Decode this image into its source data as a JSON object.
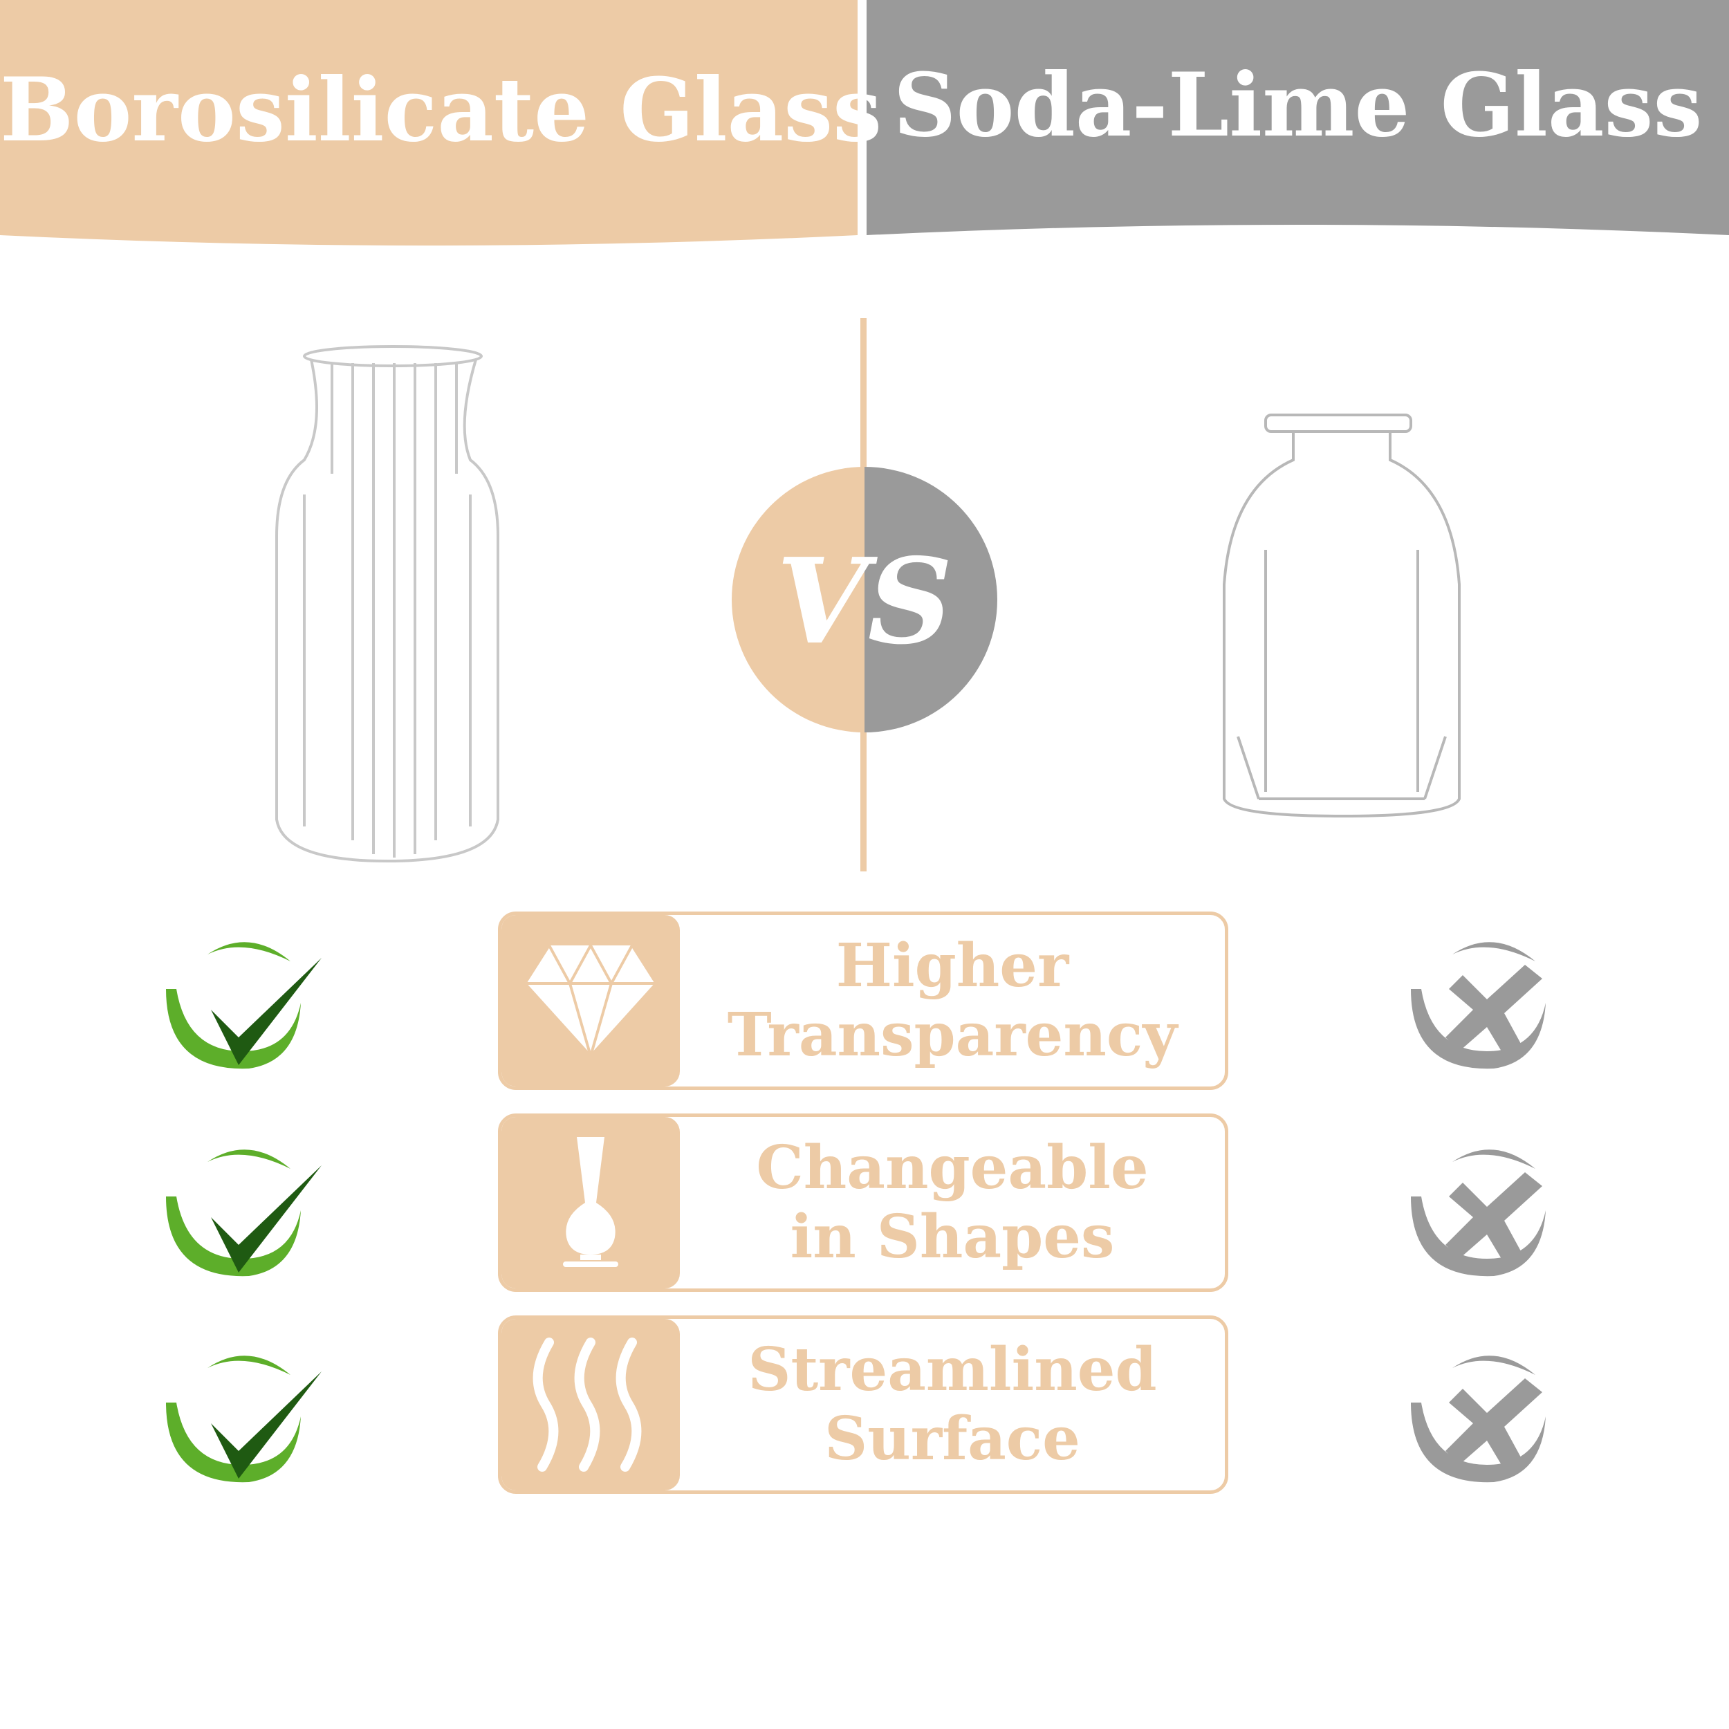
{
  "header": {
    "left_title": "Borosilicate Glass",
    "right_title": "Soda-Lime Glass"
  },
  "vs_label": "VS",
  "colors": {
    "beige": "#EDCBA6",
    "gray": "#9A9A9A",
    "green": "#5DAE2A",
    "dark_green": "#1F5A12"
  },
  "features": [
    {
      "icon": "diamond-icon",
      "line1": "Higher",
      "line2": "Transparency",
      "borosilicate": "check",
      "soda_lime": "cross"
    },
    {
      "icon": "vase-icon",
      "line1": "Changeable",
      "line2": "in Shapes",
      "borosilicate": "check",
      "soda_lime": "cross"
    },
    {
      "icon": "wavy-lines-icon",
      "line1": "Streamlined",
      "line2": "Surface",
      "borosilicate": "check",
      "soda_lime": "cross"
    }
  ]
}
